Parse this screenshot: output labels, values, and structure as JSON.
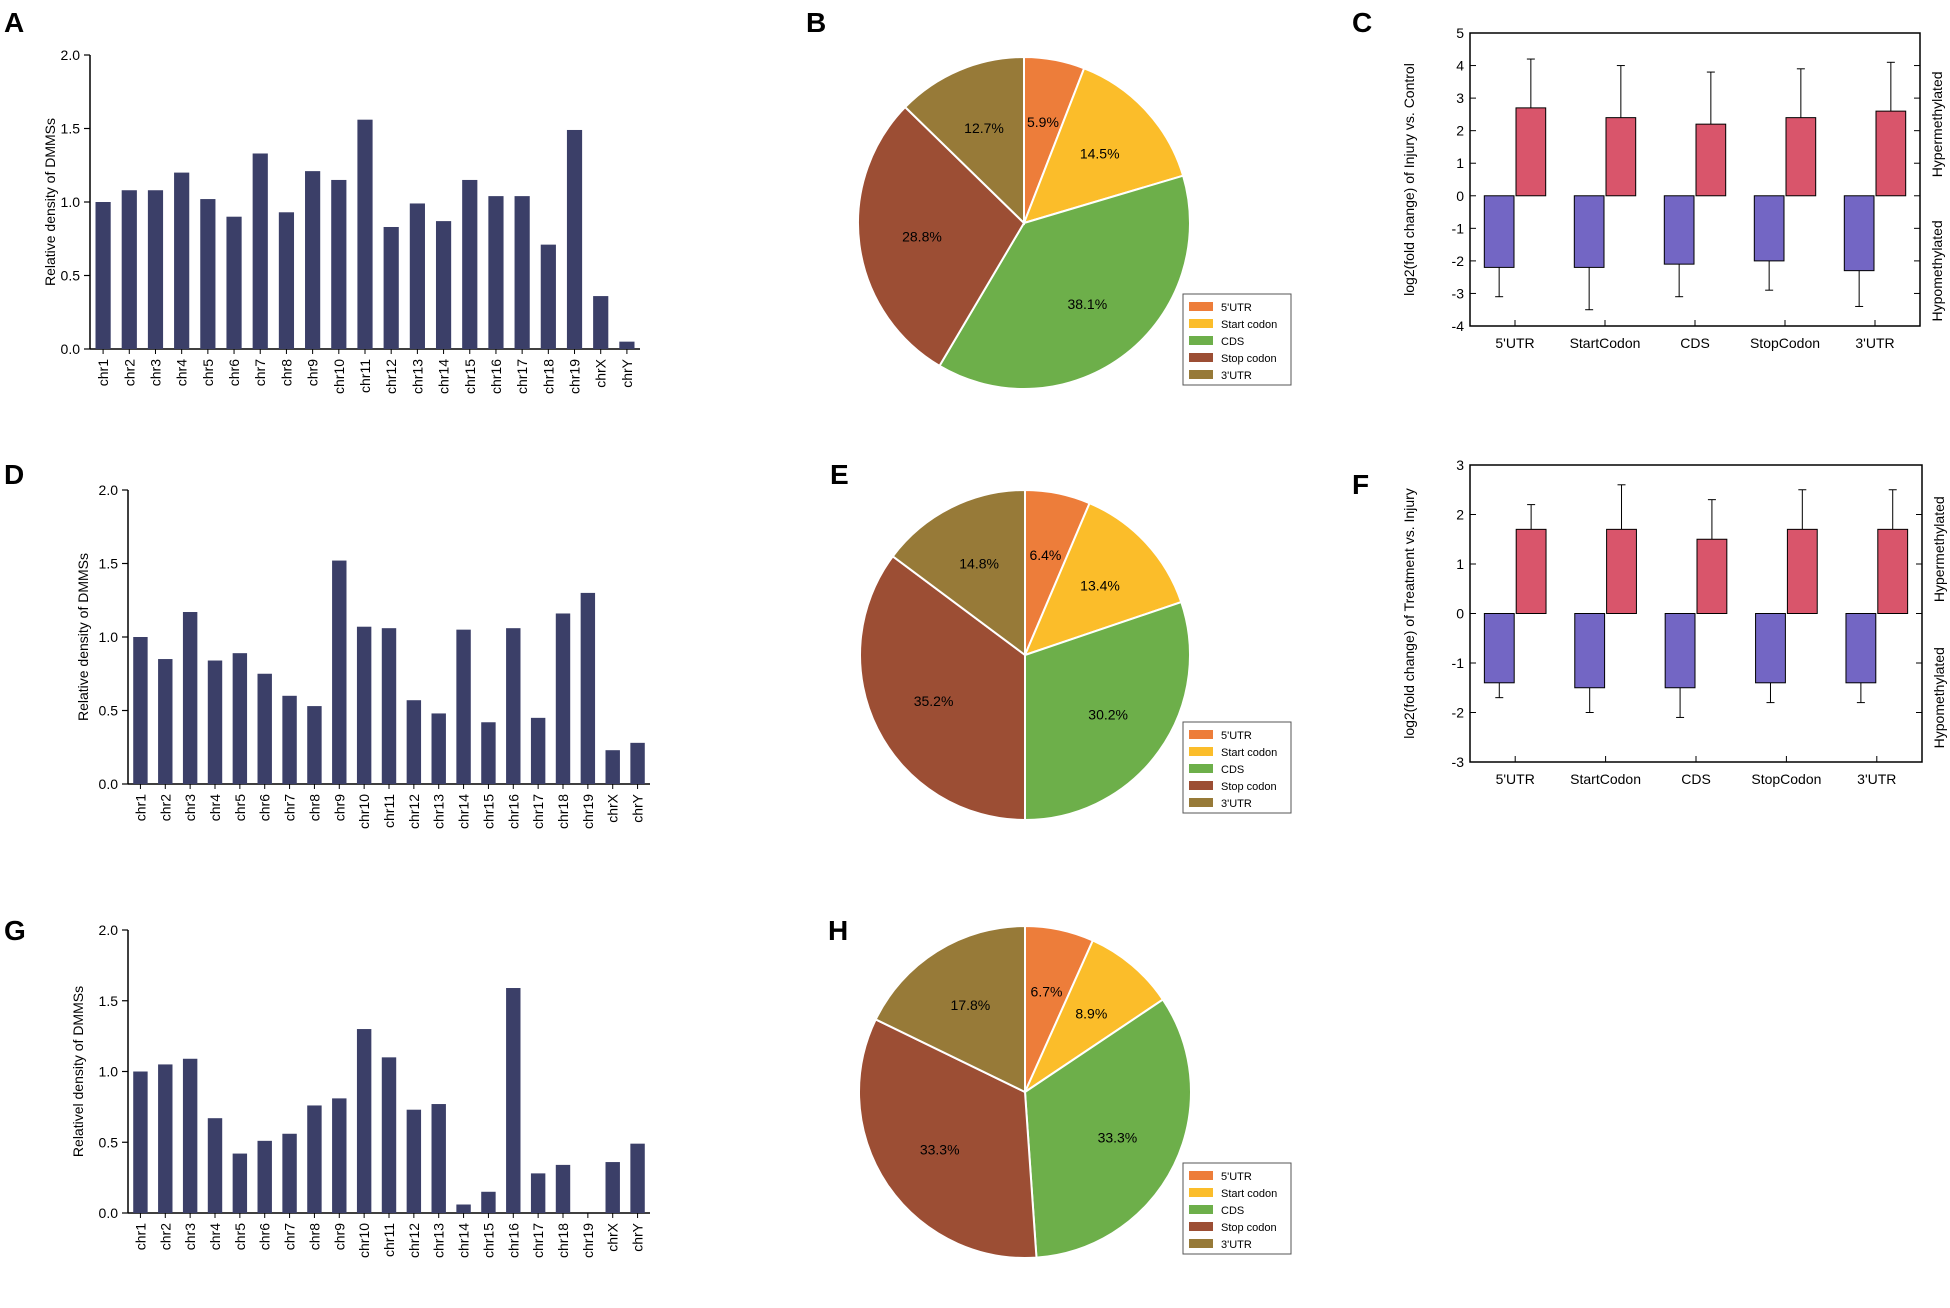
{
  "chart_data": [
    {
      "panel": "A",
      "type": "bar",
      "categories": [
        "chr1",
        "chr2",
        "chr3",
        "chr4",
        "chr5",
        "chr6",
        "chr7",
        "chr8",
        "chr9",
        "chr10",
        "chr11",
        "chr12",
        "chr13",
        "chr14",
        "chr15",
        "chr16",
        "chr17",
        "chr18",
        "chr19",
        "chrX",
        "chrY"
      ],
      "values": [
        1.0,
        1.08,
        1.08,
        1.2,
        1.02,
        0.9,
        1.33,
        0.93,
        1.21,
        1.15,
        1.56,
        0.83,
        0.99,
        0.87,
        1.15,
        1.04,
        1.04,
        0.71,
        1.49,
        0.36,
        0.05
      ],
      "ylabel": "Relative density of DMMSs",
      "ylim": [
        0,
        2.0
      ],
      "yticks": [
        "0.0",
        "0.5",
        "1.0",
        "1.5",
        "2.0"
      ],
      "color": "#3b3f68"
    },
    {
      "panel": "B",
      "type": "pie",
      "slices": [
        {
          "name": "5'UTR",
          "value": 5.9,
          "label": "5.9%",
          "color": "#ed7d3a"
        },
        {
          "name": "Start codon",
          "value": 14.5,
          "label": "14.5%",
          "color": "#fbbd2a"
        },
        {
          "name": "CDS",
          "value": 38.1,
          "label": "38.1%",
          "color": "#6daf4a"
        },
        {
          "name": "Stop codon",
          "value": 28.8,
          "label": "28.8%",
          "color": "#9c4e34"
        },
        {
          "name": "3'UTR",
          "value": 12.7,
          "label": "12.7%",
          "color": "#977a38"
        }
      ]
    },
    {
      "panel": "C",
      "type": "bar",
      "categories": [
        "5'UTR",
        "StartCodon",
        "CDS",
        "StopCodon",
        "3'UTR"
      ],
      "series": [
        {
          "name": "Hypomethylated",
          "values": [
            -2.2,
            -2.2,
            -2.1,
            -2.0,
            -2.3
          ],
          "errors": [
            0.9,
            1.3,
            1.0,
            0.9,
            1.1
          ],
          "color": "#7366c4"
        },
        {
          "name": "Hypermethylated",
          "values": [
            2.7,
            2.4,
            2.2,
            2.4,
            2.6
          ],
          "errors": [
            1.5,
            1.6,
            1.6,
            1.5,
            1.5
          ],
          "color": "#d9556b"
        }
      ],
      "ylabel": "log2(fold change) of Injury vs. Control",
      "ylim": [
        -4,
        5
      ],
      "yticks": [
        "-4",
        "-3",
        "-2",
        "-1",
        "0",
        "1",
        "2",
        "3",
        "4",
        "5"
      ],
      "right_labels": {
        "top": "Hypermethylated",
        "bottom": "Hypomethylated"
      }
    },
    {
      "panel": "D",
      "type": "bar",
      "categories": [
        "chr1",
        "chr2",
        "chr3",
        "chr4",
        "chr5",
        "chr6",
        "chr7",
        "chr8",
        "chr9",
        "chr10",
        "chr11",
        "chr12",
        "chr13",
        "chr14",
        "chr15",
        "chr16",
        "chr17",
        "chr18",
        "chr19",
        "chrX",
        "chrY"
      ],
      "values": [
        1.0,
        0.85,
        1.17,
        0.84,
        0.89,
        0.75,
        0.6,
        0.53,
        1.52,
        1.07,
        1.06,
        0.57,
        0.48,
        1.05,
        0.42,
        1.06,
        0.45,
        1.16,
        1.3,
        0.23,
        0.28
      ],
      "ylabel": "Relative density of DMMSs",
      "ylim": [
        0,
        2.0
      ],
      "yticks": [
        "0.0",
        "0.5",
        "1.0",
        "1.5",
        "2.0"
      ],
      "color": "#3b3f68"
    },
    {
      "panel": "E",
      "type": "pie",
      "slices": [
        {
          "name": "5'UTR",
          "value": 6.4,
          "label": "6.4%",
          "color": "#ed7d3a"
        },
        {
          "name": "Start codon",
          "value": 13.4,
          "label": "13.4%",
          "color": "#fbbd2a"
        },
        {
          "name": "CDS",
          "value": 30.2,
          "label": "30.2%",
          "color": "#6daf4a"
        },
        {
          "name": "Stop codon",
          "value": 35.2,
          "label": "35.2%",
          "color": "#9c4e34"
        },
        {
          "name": "3'UTR",
          "value": 14.8,
          "label": "14.8%",
          "color": "#977a38"
        }
      ]
    },
    {
      "panel": "F",
      "type": "bar",
      "categories": [
        "5'UTR",
        "StartCodon",
        "CDS",
        "StopCodon",
        "3'UTR"
      ],
      "series": [
        {
          "name": "Hypomethylated",
          "values": [
            -1.4,
            -1.5,
            -1.5,
            -1.4,
            -1.4
          ],
          "errors": [
            0.3,
            0.5,
            0.6,
            0.4,
            0.4
          ],
          "color": "#7366c4"
        },
        {
          "name": "Hypermethylated",
          "values": [
            1.7,
            1.7,
            1.5,
            1.7,
            1.7
          ],
          "errors": [
            0.5,
            0.9,
            0.8,
            0.8,
            0.8
          ],
          "color": "#d9556b"
        }
      ],
      "ylabel": "log2(fold change) of Treatment vs. Injury",
      "ylim": [
        -3,
        3
      ],
      "yticks": [
        "-3",
        "-2",
        "-1",
        "0",
        "1",
        "2",
        "3"
      ],
      "right_labels": {
        "top": "Hypermethylated",
        "bottom": "Hypomethylated"
      }
    },
    {
      "panel": "G",
      "type": "bar",
      "categories": [
        "chr1",
        "chr2",
        "chr3",
        "chr4",
        "chr5",
        "chr6",
        "chr7",
        "chr8",
        "chr9",
        "chr10",
        "chr11",
        "chr12",
        "chr13",
        "chr14",
        "chr15",
        "chr16",
        "chr17",
        "chr18",
        "chr19",
        "chrX",
        "chrY"
      ],
      "values": [
        1.0,
        1.05,
        1.09,
        0.67,
        0.42,
        0.51,
        0.56,
        0.76,
        0.81,
        1.3,
        1.1,
        0.73,
        0.77,
        0.06,
        0.15,
        1.59,
        0.28,
        0.34,
        0.0,
        0.36,
        0.49
      ],
      "ylabel": "Relativel density of DMMSs",
      "ylim": [
        0,
        2.0
      ],
      "yticks": [
        "0.0",
        "0.5",
        "1.0",
        "1.5",
        "2.0"
      ],
      "color": "#3b3f68"
    },
    {
      "panel": "H",
      "type": "pie",
      "slices": [
        {
          "name": "5'UTR",
          "value": 6.7,
          "label": "6.7%",
          "color": "#ed7d3a"
        },
        {
          "name": "Start codon",
          "value": 8.9,
          "label": "8.9%",
          "color": "#fbbd2a"
        },
        {
          "name": "CDS",
          "value": 33.3,
          "label": "33.3%",
          "color": "#6daf4a"
        },
        {
          "name": "Stop codon",
          "value": 33.3,
          "label": "33.3%",
          "color": "#9c4e34"
        },
        {
          "name": "3'UTR",
          "value": 17.8,
          "label": "17.8%",
          "color": "#977a38"
        }
      ]
    }
  ]
}
